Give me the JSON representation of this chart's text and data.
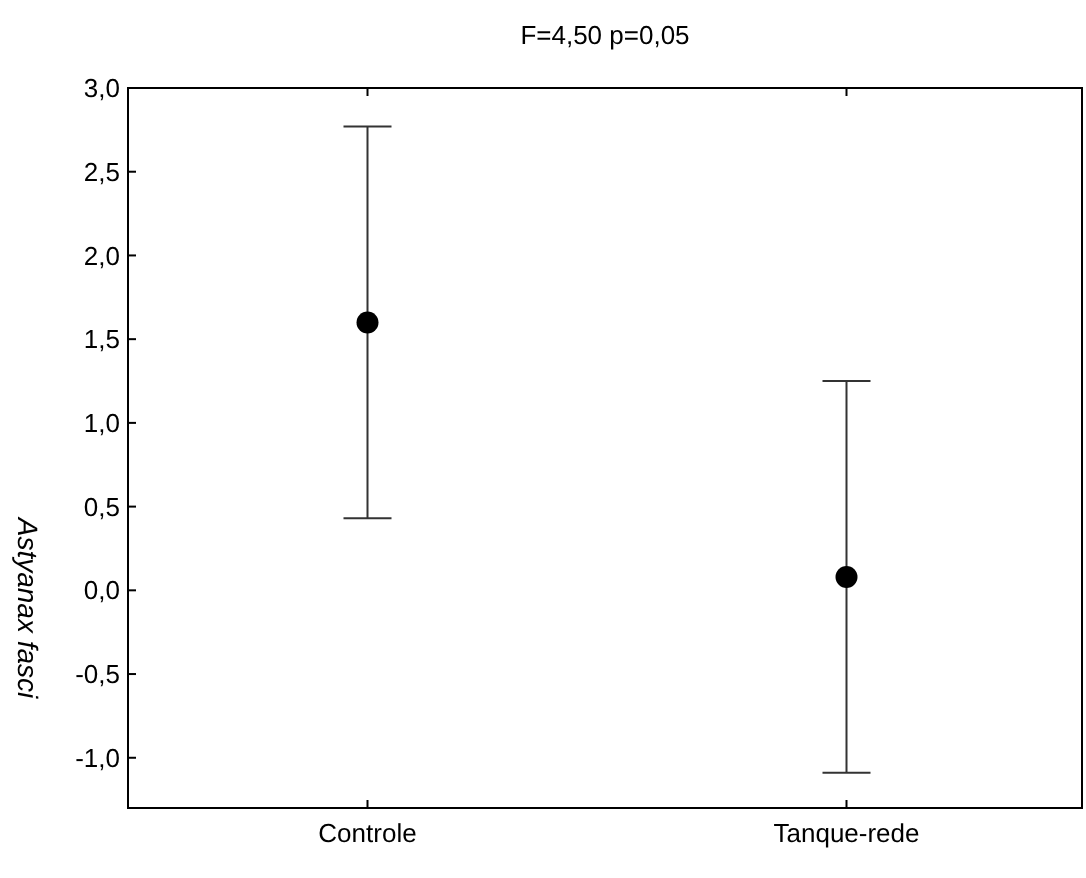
{
  "chart_data": {
    "type": "scatter",
    "title": "F=4,50 p=0,05",
    "ylabel": "Astyanax fasci",
    "categories": [
      "Controle",
      "Tanque-rede"
    ],
    "values": [
      1.6,
      0.08
    ],
    "errors": [
      1.17,
      1.17
    ],
    "color": "#000000",
    "marker": "circle",
    "ylim": [
      -1.3,
      3.0
    ],
    "yticks": [
      {
        "value": -1,
        "label": "-1,0"
      },
      {
        "value": -0.5,
        "label": "-0,5"
      },
      {
        "value": 0,
        "label": "0,0"
      },
      {
        "value": 0.5,
        "label": "0,5"
      },
      {
        "value": 1,
        "label": "1,0"
      },
      {
        "value": 1.5,
        "label": "1,5"
      },
      {
        "value": 2,
        "label": "2,0"
      },
      {
        "value": 2.5,
        "label": "2,5"
      },
      {
        "value": 3,
        "label": "3,0"
      }
    ],
    "grid": false
  }
}
